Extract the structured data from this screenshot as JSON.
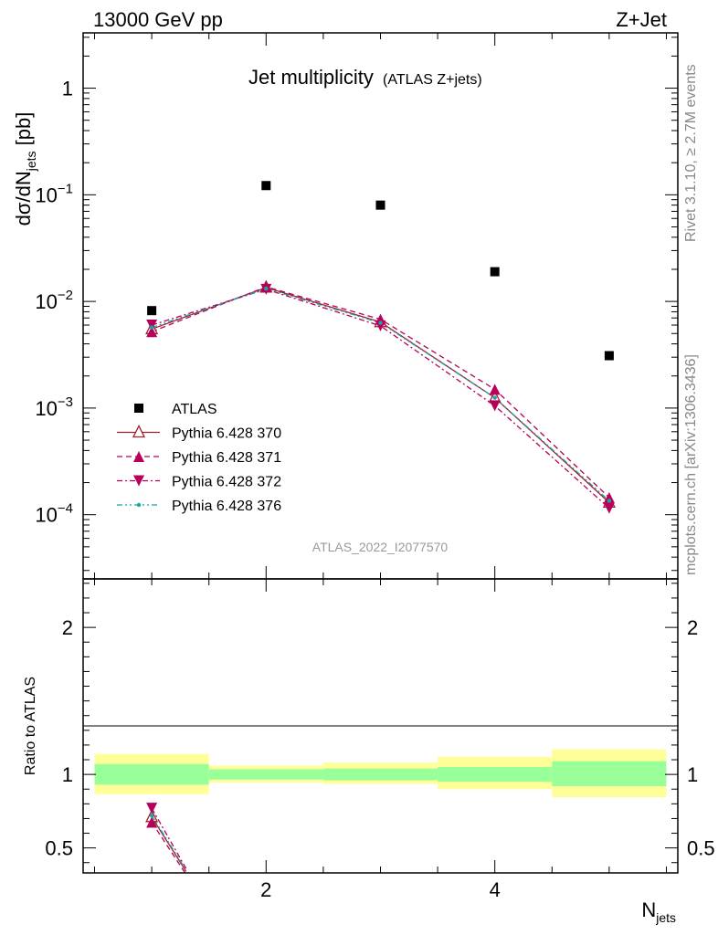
{
  "header": {
    "left": "13000 GeV pp",
    "right": "Z+Jet"
  },
  "plot_title": "Jet multiplicity",
  "plot_subtitle": "(ATLAS Z+jets)",
  "analysis_id": "ATLAS_2022_I2077570",
  "side_rivet": "Rivet 3.1.10, ≥ 2.7M events",
  "side_mcplots": "mcplots.cern.ch [arXiv:1306.3436]",
  "ylabel_main": "dσ/dN",
  "ylabel_main_sub": "jets",
  "ylabel_main_unit": " [pb]",
  "ylabel_ratio": "Ratio to ATLAS",
  "xlabel": "N",
  "xlabel_sub": "jets",
  "colors": {
    "atlas": "#000000",
    "p370": "#a0202a",
    "p371": "#b8005a",
    "p372": "#b8005a",
    "p376": "#1aa5a5",
    "band_inner": "#99ff99",
    "band_outer": "#ffff99"
  },
  "chart_data": [
    {
      "type": "scatter",
      "title": "Jet multiplicity",
      "xlabel": "N_jets",
      "ylabel": "dσ/dN_jets [pb]",
      "yscale": "log",
      "xlim": [
        0.4,
        5.6
      ],
      "ylim": [
        2.5e-05,
        3.3
      ],
      "x_ticks": [
        "2",
        "4"
      ],
      "y_ticks": [
        "1",
        "10^-1",
        "10^-2",
        "10^-3",
        "10^-4"
      ],
      "legend_placement": "lower-left",
      "x": [
        1,
        2,
        3,
        4,
        5
      ],
      "series": [
        {
          "name": "ATLAS",
          "marker": "square",
          "values": [
            0.0082,
            0.122,
            0.08,
            0.019,
            0.0031
          ]
        },
        {
          "name": "Pythia 6.428 370",
          "style": "solid",
          "marker": "open-triangle-up",
          "values": [
            0.0055,
            0.0135,
            0.0064,
            0.00125,
            0.00013
          ]
        },
        {
          "name": "Pythia 6.428 371",
          "style": "dashed",
          "marker": "triangle-up",
          "values": [
            0.0052,
            0.0137,
            0.0068,
            0.0015,
            0.000145
          ]
        },
        {
          "name": "Pythia 6.428 372",
          "style": "dash-dot",
          "marker": "triangle-down",
          "values": [
            0.006,
            0.013,
            0.0059,
            0.00105,
            0.000115
          ]
        },
        {
          "name": "Pythia 6.428 376",
          "style": "dash-dot-dot",
          "marker": "star",
          "values": [
            0.0057,
            0.0132,
            0.0063,
            0.00125,
            0.000135
          ]
        }
      ]
    },
    {
      "type": "line",
      "ylabel": "Ratio to ATLAS",
      "xlabel": "N_jets",
      "xlim": [
        0.4,
        5.6
      ],
      "ylim": [
        0.33,
        2.33
      ],
      "y_ticks": [
        "0.5",
        "1",
        "2"
      ],
      "x_ticks": [
        "2",
        "4"
      ],
      "bins": [
        [
          0.5,
          1.5
        ],
        [
          1.5,
          2.5
        ],
        [
          2.5,
          3.5
        ],
        [
          3.5,
          4.5
        ],
        [
          4.5,
          5.5
        ]
      ],
      "band_inner": [
        [
          0.93,
          1.07
        ],
        [
          0.965,
          1.035
        ],
        [
          0.96,
          1.04
        ],
        [
          0.95,
          1.05
        ],
        [
          0.92,
          1.09
        ]
      ],
      "band_outer": [
        [
          0.865,
          1.14
        ],
        [
          0.945,
          1.06
        ],
        [
          0.935,
          1.08
        ],
        [
          0.9,
          1.12
        ],
        [
          0.845,
          1.17
        ]
      ],
      "x": [
        1,
        1.3
      ],
      "series": [
        {
          "name": "Pythia 6.428 370",
          "values": [
            0.71,
            0.34
          ]
        },
        {
          "name": "Pythia 6.428 371",
          "values": [
            0.675,
            0.32
          ]
        },
        {
          "name": "Pythia 6.428 372",
          "values": [
            0.77,
            0.36
          ]
        },
        {
          "name": "Pythia 6.428 376",
          "values": [
            0.72,
            0.35
          ]
        }
      ]
    }
  ]
}
